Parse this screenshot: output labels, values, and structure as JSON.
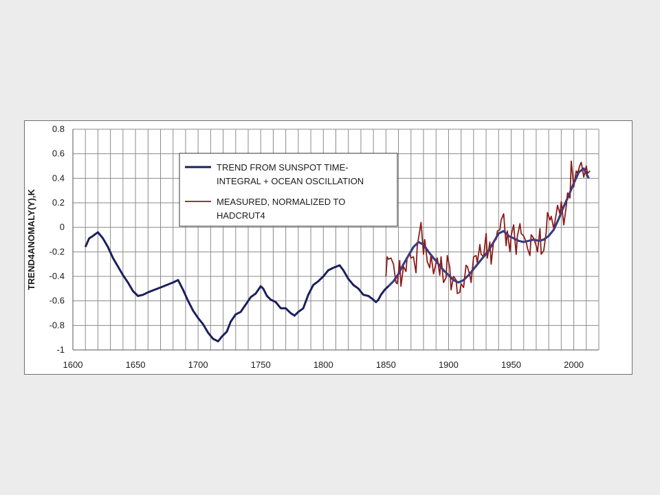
{
  "chart_data": {
    "type": "line",
    "title": "",
    "xlabel": "",
    "ylabel": "TREND4ANOMALY(Y),K",
    "xlim": [
      1600,
      2020
    ],
    "ylim": [
      -1,
      0.8
    ],
    "x_ticks": [
      1600,
      1650,
      1700,
      1750,
      1800,
      1850,
      1900,
      1950,
      2000
    ],
    "y_ticks": [
      -1,
      -0.8,
      -0.6,
      -0.4,
      -0.2,
      0,
      0.2,
      0.4,
      0.6,
      0.8
    ],
    "x_tick_labels": [
      "1600",
      "1650",
      "1700",
      "1750",
      "1800",
      "1850",
      "1900",
      "1950",
      "2000"
    ],
    "y_tick_labels": [
      "-1",
      "-0.8",
      "-0.6",
      "-0.4",
      "-0.2",
      "0",
      "0.2",
      "0.4",
      "0.6",
      "0.8"
    ],
    "grid": true,
    "legend": {
      "placement": "top-center",
      "entries": [
        {
          "line1": "TREND FROM SUNSPOT TIME-",
          "line2": "INTEGRAL + OCEAN OSCILLATION",
          "color": "#1b1f5c"
        },
        {
          "line1": "MEASURED, NORMALIZED TO",
          "line2": "HADCRUT4",
          "color": "#8b1a1a"
        }
      ]
    },
    "series": [
      {
        "color": "#1b1f5c",
        "x": [
          1610,
          1613,
          1616,
          1620,
          1624,
          1628,
          1632,
          1636,
          1640,
          1644,
          1648,
          1652,
          1656,
          1660,
          1665,
          1670,
          1675,
          1680,
          1684,
          1688,
          1692,
          1696,
          1700,
          1704,
          1708,
          1712,
          1716,
          1719,
          1723,
          1726,
          1730,
          1734,
          1738,
          1742,
          1746,
          1750,
          1752,
          1755,
          1758,
          1762,
          1766,
          1770,
          1774,
          1777,
          1780,
          1784,
          1788,
          1792,
          1796,
          1800,
          1804,
          1808,
          1813,
          1816,
          1820,
          1824,
          1828,
          1832,
          1836,
          1840,
          1842,
          1844,
          1846,
          1849,
          1852,
          1856,
          1860,
          1864,
          1868,
          1872,
          1876,
          1880,
          1884,
          1888,
          1892,
          1896,
          1900,
          1904,
          1908,
          1912,
          1916,
          1920,
          1924,
          1928,
          1932,
          1936,
          1940,
          1944,
          1948,
          1952,
          1956,
          1960,
          1964,
          1968,
          1972,
          1976,
          1980,
          1984,
          1988,
          1992,
          1996,
          2000,
          2004,
          2008,
          2012
        ],
        "y": [
          -0.16,
          -0.09,
          -0.07,
          -0.04,
          -0.09,
          -0.16,
          -0.25,
          -0.32,
          -0.39,
          -0.45,
          -0.52,
          -0.56,
          -0.55,
          -0.53,
          -0.51,
          -0.49,
          -0.47,
          -0.45,
          -0.43,
          -0.51,
          -0.6,
          -0.68,
          -0.74,
          -0.79,
          -0.86,
          -0.91,
          -0.93,
          -0.89,
          -0.85,
          -0.77,
          -0.71,
          -0.69,
          -0.63,
          -0.57,
          -0.54,
          -0.48,
          -0.5,
          -0.56,
          -0.59,
          -0.61,
          -0.66,
          -0.66,
          -0.7,
          -0.72,
          -0.69,
          -0.66,
          -0.55,
          -0.47,
          -0.44,
          -0.4,
          -0.35,
          -0.33,
          -0.31,
          -0.35,
          -0.42,
          -0.47,
          -0.5,
          -0.55,
          -0.56,
          -0.59,
          -0.61,
          -0.59,
          -0.55,
          -0.51,
          -0.48,
          -0.44,
          -0.38,
          -0.3,
          -0.23,
          -0.16,
          -0.12,
          -0.14,
          -0.2,
          -0.25,
          -0.3,
          -0.35,
          -0.39,
          -0.43,
          -0.45,
          -0.43,
          -0.39,
          -0.34,
          -0.29,
          -0.24,
          -0.19,
          -0.12,
          -0.05,
          -0.03,
          -0.07,
          -0.09,
          -0.11,
          -0.12,
          -0.11,
          -0.1,
          -0.11,
          -0.1,
          -0.07,
          -0.02,
          0.07,
          0.17,
          0.26,
          0.36,
          0.45,
          0.48,
          0.4
        ]
      },
      {
        "color": "#8b1a1a",
        "x": [
          1850,
          1851,
          1852,
          1854,
          1856,
          1858,
          1859,
          1861,
          1862,
          1864,
          1866,
          1867,
          1869,
          1870,
          1872,
          1874,
          1875,
          1877,
          1878,
          1880,
          1881,
          1883,
          1885,
          1886,
          1888,
          1890,
          1891,
          1893,
          1894,
          1896,
          1898,
          1899,
          1901,
          1902,
          1904,
          1906,
          1907,
          1909,
          1910,
          1912,
          1914,
          1915,
          1917,
          1918,
          1920,
          1922,
          1923,
          1925,
          1926,
          1928,
          1930,
          1931,
          1933,
          1934,
          1936,
          1938,
          1939,
          1941,
          1942,
          1944,
          1946,
          1947,
          1949,
          1950,
          1952,
          1954,
          1955,
          1957,
          1958,
          1960,
          1962,
          1963,
          1965,
          1966,
          1968,
          1970,
          1971,
          1973,
          1974,
          1976,
          1978,
          1979,
          1981,
          1982,
          1984,
          1986,
          1987,
          1989,
          1990,
          1992,
          1994,
          1995,
          1997,
          1998,
          2000,
          2002,
          2003,
          2005,
          2006,
          2008,
          2010,
          2011,
          2013
        ],
        "y": [
          -0.4,
          -0.24,
          -0.26,
          -0.25,
          -0.3,
          -0.45,
          -0.46,
          -0.27,
          -0.48,
          -0.32,
          -0.36,
          -0.24,
          -0.22,
          -0.25,
          -0.24,
          -0.37,
          -0.15,
          -0.03,
          0.04,
          -0.22,
          -0.1,
          -0.28,
          -0.33,
          -0.22,
          -0.38,
          -0.29,
          -0.25,
          -0.39,
          -0.24,
          -0.45,
          -0.41,
          -0.23,
          -0.33,
          -0.51,
          -0.4,
          -0.43,
          -0.54,
          -0.53,
          -0.46,
          -0.49,
          -0.31,
          -0.32,
          -0.39,
          -0.45,
          -0.24,
          -0.23,
          -0.29,
          -0.14,
          -0.22,
          -0.24,
          -0.05,
          -0.25,
          -0.12,
          -0.3,
          -0.11,
          -0.1,
          -0.03,
          -0.02,
          0.06,
          0.11,
          -0.15,
          -0.03,
          -0.2,
          -0.07,
          0.02,
          -0.22,
          -0.07,
          0.03,
          -0.05,
          -0.07,
          -0.12,
          -0.17,
          -0.23,
          -0.06,
          -0.09,
          -0.15,
          -0.2,
          -0.01,
          -0.22,
          -0.19,
          -0.04,
          0.12,
          0.06,
          0.09,
          -0.01,
          0.11,
          0.18,
          0.11,
          0.21,
          0.02,
          0.17,
          0.28,
          0.24,
          0.54,
          0.33,
          0.46,
          0.44,
          0.51,
          0.53,
          0.41,
          0.5,
          0.44,
          0.46
        ]
      }
    ]
  }
}
